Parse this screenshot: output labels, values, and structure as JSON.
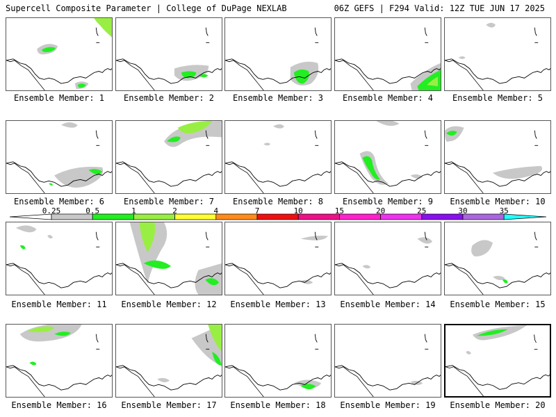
{
  "header": {
    "title_left": "Supercell Composite Parameter | College of DuPage NEXLAB",
    "title_right": "06Z GEFS | F294 Valid: 12Z TUE JUN 17 2025"
  },
  "colorbar": {
    "ticks": [
      "0.25",
      "0.5",
      "1",
      "2",
      "4",
      "7",
      "10",
      "15",
      "20",
      "25",
      "30",
      "35"
    ],
    "colors": [
      "#c8c8c8",
      "#22ee22",
      "#99ee44",
      "#ffff33",
      "#ff8c1a",
      "#ee1111",
      "#ee1188",
      "#ff22cc",
      "#ee33ee",
      "#8811ee",
      "#aa66dd",
      "#22ffff"
    ]
  },
  "panels": [
    {
      "label": "Ensemble Member: 1"
    },
    {
      "label": "Ensemble Member: 2"
    },
    {
      "label": "Ensemble Member: 3"
    },
    {
      "label": "Ensemble Member: 4"
    },
    {
      "label": "Ensemble Member: 5"
    },
    {
      "label": "Ensemble Member: 6"
    },
    {
      "label": "Ensemble Member: 7"
    },
    {
      "label": "Ensemble Member: 8"
    },
    {
      "label": "Ensemble Member: 9"
    },
    {
      "label": "Ensemble Member: 10"
    },
    {
      "label": "Ensemble Member: 11"
    },
    {
      "label": "Ensemble Member: 12"
    },
    {
      "label": "Ensemble Member: 13"
    },
    {
      "label": "Ensemble Member: 14"
    },
    {
      "label": "Ensemble Member: 15"
    },
    {
      "label": "Ensemble Member: 16"
    },
    {
      "label": "Ensemble Member: 17"
    },
    {
      "label": "Ensemble Member: 18"
    },
    {
      "label": "Ensemble Member: 19"
    },
    {
      "label": "Ensemble Member: 20"
    }
  ]
}
